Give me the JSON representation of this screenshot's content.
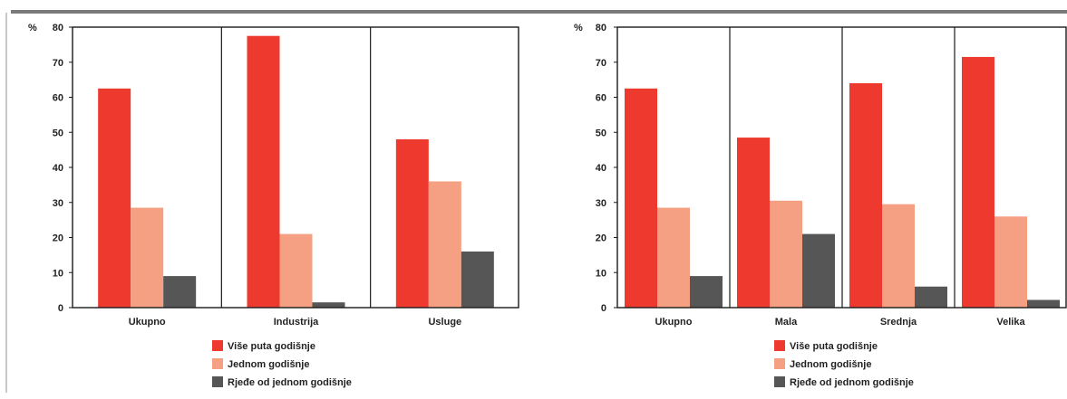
{
  "colors": {
    "series": [
      "#ee3a2e",
      "#f5a083",
      "#565656"
    ],
    "frame": "#1a1a1a",
    "rule": "#7a7a7a"
  },
  "chart_data": [
    {
      "type": "bar",
      "ylabel": "%",
      "ylim": [
        0,
        80
      ],
      "yticks": [
        "0",
        "10",
        "20",
        "30",
        "40",
        "50",
        "60",
        "70",
        "80"
      ],
      "categories": [
        "Ukupno",
        "Industrija",
        "Usluge"
      ],
      "series": [
        {
          "name": "Više puta godišnje",
          "values": [
            62.5,
            77.5,
            48
          ]
        },
        {
          "name": "Jednom godišnje",
          "values": [
            28.5,
            21,
            36
          ]
        },
        {
          "name": "Rjeđe od jednom godišnje",
          "values": [
            9,
            1.5,
            16
          ]
        }
      ],
      "grid": false,
      "legend": "bottom"
    },
    {
      "type": "bar",
      "ylabel": "%",
      "ylim": [
        0,
        80
      ],
      "yticks": [
        "0",
        "10",
        "20",
        "30",
        "40",
        "50",
        "60",
        "70",
        "80"
      ],
      "categories": [
        "Ukupno",
        "Mala",
        "Srednja",
        "Velika"
      ],
      "series": [
        {
          "name": "Više puta godišnje",
          "values": [
            62.5,
            48.5,
            64,
            71.5
          ]
        },
        {
          "name": "Jednom godišnje",
          "values": [
            28.5,
            30.5,
            29.5,
            26
          ]
        },
        {
          "name": "Rjeđe od jednom godišnje",
          "values": [
            9,
            21,
            6,
            2.2
          ]
        }
      ],
      "grid": false,
      "legend": "bottom"
    }
  ]
}
